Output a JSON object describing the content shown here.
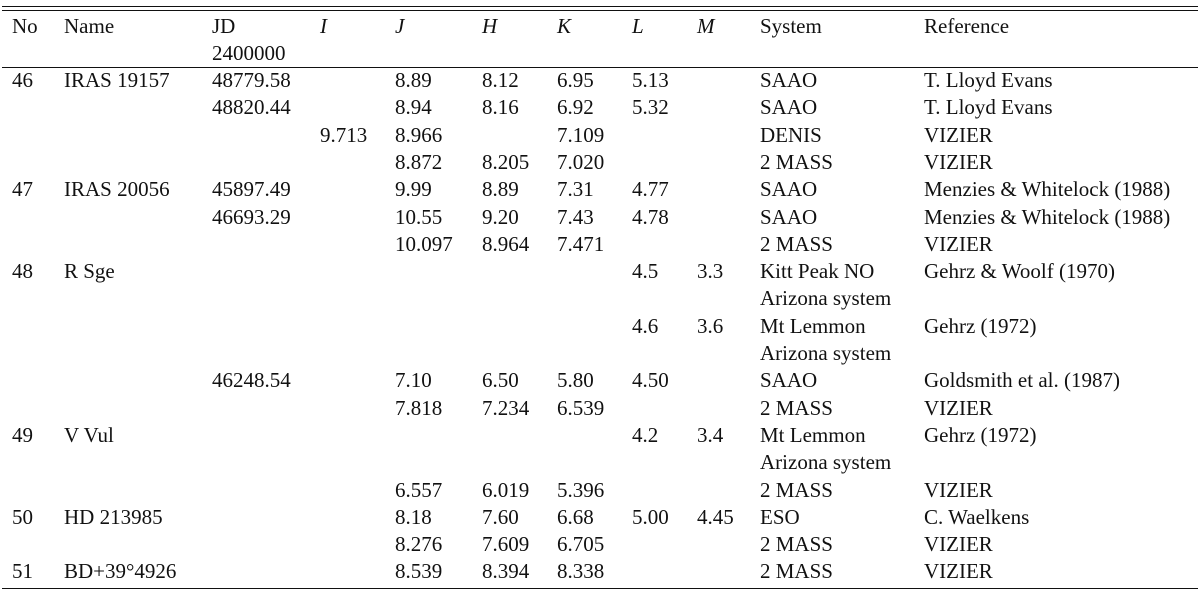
{
  "columns": [
    {
      "key": "no",
      "label": "No"
    },
    {
      "key": "name",
      "label": "Name"
    },
    {
      "key": "jd",
      "label": "JD",
      "sub": "2400000"
    },
    {
      "key": "i",
      "label": "I"
    },
    {
      "key": "j",
      "label": "J"
    },
    {
      "key": "h",
      "label": "H"
    },
    {
      "key": "k",
      "label": "K"
    },
    {
      "key": "l",
      "label": "L"
    },
    {
      "key": "m",
      "label": "M"
    },
    {
      "key": "system",
      "label": "System"
    },
    {
      "key": "reference",
      "label": "Reference"
    }
  ],
  "rows": [
    {
      "no": "46",
      "name": "IRAS 19157",
      "jd": "48779.58",
      "i": "",
      "j": "8.89",
      "h": "8.12",
      "k": "6.95",
      "l": "5.13",
      "m": "",
      "system": "SAAO",
      "reference": "T. Lloyd Evans"
    },
    {
      "no": "",
      "name": "",
      "jd": "48820.44",
      "i": "",
      "j": "8.94",
      "h": "8.16",
      "k": "6.92",
      "l": "5.32",
      "m": "",
      "system": "SAAO",
      "reference": "T. Lloyd Evans"
    },
    {
      "no": "",
      "name": "",
      "jd": "",
      "i": "9.713",
      "j": "8.966",
      "h": "",
      "k": "7.109",
      "l": "",
      "m": "",
      "system": "DENIS",
      "reference": "VIZIER"
    },
    {
      "no": "",
      "name": "",
      "jd": "",
      "i": "",
      "j": "8.872",
      "h": "8.205",
      "k": "7.020",
      "l": "",
      "m": "",
      "system": "2 MASS",
      "reference": "VIZIER"
    },
    {
      "no": "47",
      "name": "IRAS 20056",
      "jd": "45897.49",
      "i": "",
      "j": "9.99",
      "h": "8.89",
      "k": "7.31",
      "l": "4.77",
      "m": "",
      "system": "SAAO",
      "reference": "Menzies & Whitelock (1988)"
    },
    {
      "no": "",
      "name": "",
      "jd": "46693.29",
      "i": "",
      "j": "10.55",
      "h": "9.20",
      "k": "7.43",
      "l": "4.78",
      "m": "",
      "system": "SAAO",
      "reference": "Menzies & Whitelock (1988)"
    },
    {
      "no": "",
      "name": "",
      "jd": "",
      "i": "",
      "j": "10.097",
      "h": "8.964",
      "k": "7.471",
      "l": "",
      "m": "",
      "system": "2 MASS",
      "reference": "VIZIER"
    },
    {
      "no": "48",
      "name": "R Sge",
      "jd": "",
      "i": "",
      "j": "",
      "h": "",
      "k": "",
      "l": "4.5",
      "m": "3.3",
      "system": "Kitt Peak NO",
      "reference": "Gehrz & Woolf (1970)"
    },
    {
      "no": "",
      "name": "",
      "jd": "",
      "i": "",
      "j": "",
      "h": "",
      "k": "",
      "l": "",
      "m": "",
      "system": "Arizona system",
      "reference": ""
    },
    {
      "no": "",
      "name": "",
      "jd": "",
      "i": "",
      "j": "",
      "h": "",
      "k": "",
      "l": "4.6",
      "m": "3.6",
      "system": "Mt Lemmon",
      "reference": "Gehrz (1972)"
    },
    {
      "no": "",
      "name": "",
      "jd": "",
      "i": "",
      "j": "",
      "h": "",
      "k": "",
      "l": "",
      "m": "",
      "system": "Arizona system",
      "reference": ""
    },
    {
      "no": "",
      "name": "",
      "jd": "46248.54",
      "i": "",
      "j": "7.10",
      "h": "6.50",
      "k": "5.80",
      "l": "4.50",
      "m": "",
      "system": "SAAO",
      "reference": "Goldsmith et al. (1987)"
    },
    {
      "no": "",
      "name": "",
      "jd": "",
      "i": "",
      "j": "7.818",
      "h": "7.234",
      "k": "6.539",
      "l": "",
      "m": "",
      "system": "2 MASS",
      "reference": "VIZIER"
    },
    {
      "no": "49",
      "name": "V Vul",
      "jd": "",
      "i": "",
      "j": "",
      "h": "",
      "k": "",
      "l": "4.2",
      "m": "3.4",
      "system": "Mt Lemmon",
      "reference": "Gehrz (1972)"
    },
    {
      "no": "",
      "name": "",
      "jd": "",
      "i": "",
      "j": "",
      "h": "",
      "k": "",
      "l": "",
      "m": "",
      "system": "Arizona system",
      "reference": ""
    },
    {
      "no": "",
      "name": "",
      "jd": "",
      "i": "",
      "j": "6.557",
      "h": "6.019",
      "k": "5.396",
      "l": "",
      "m": "",
      "system": "2 MASS",
      "reference": "VIZIER"
    },
    {
      "no": "50",
      "name": "HD 213985",
      "jd": "",
      "i": "",
      "j": "8.18",
      "h": "7.60",
      "k": "6.68",
      "l": "5.00",
      "m": "4.45",
      "system": "ESO",
      "reference": "C. Waelkens"
    },
    {
      "no": "",
      "name": "",
      "jd": "",
      "i": "",
      "j": "8.276",
      "h": "7.609",
      "k": "6.705",
      "l": "",
      "m": "",
      "system": "2 MASS",
      "reference": "VIZIER"
    },
    {
      "no": "51",
      "name": "BD+39°4926",
      "jd": "",
      "i": "",
      "j": "8.539",
      "h": "8.394",
      "k": "8.338",
      "l": "",
      "m": "",
      "system": "2 MASS",
      "reference": "VIZIER"
    }
  ]
}
